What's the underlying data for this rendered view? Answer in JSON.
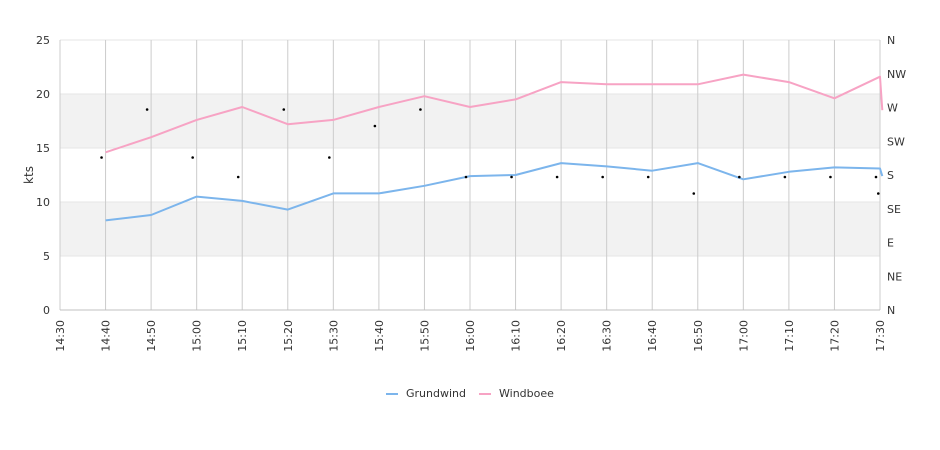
{
  "chart_data": {
    "type": "line",
    "ylabel": "kts",
    "ylim": [
      0,
      25
    ],
    "yticks": [
      "0",
      "5",
      "10",
      "15",
      "20",
      "25"
    ],
    "y2ticks": [
      "N",
      "NE",
      "E",
      "SE",
      "S",
      "SW",
      "W",
      "NW",
      "N"
    ],
    "y2lim": [
      0,
      360
    ],
    "categories": [
      "14:30",
      "14:40",
      "14:50",
      "15:00",
      "15:10",
      "15:20",
      "15:30",
      "15:40",
      "15:50",
      "16:00",
      "16:10",
      "16:20",
      "16:30",
      "16:40",
      "16:50",
      "17:00",
      "17:10",
      "17:20",
      "17:30"
    ],
    "series": [
      {
        "name": "Grundwind",
        "color": "#7cb5ec",
        "points": [
          [
            1,
            8.3
          ],
          [
            2,
            8.8
          ],
          [
            3,
            10.5
          ],
          [
            4,
            10.1
          ],
          [
            5,
            9.3
          ],
          [
            6,
            10.8
          ],
          [
            7,
            10.8
          ],
          [
            8,
            11.5
          ],
          [
            9,
            12.4
          ],
          [
            10,
            12.5
          ],
          [
            11,
            13.6
          ],
          [
            12,
            13.3
          ],
          [
            13,
            12.9
          ],
          [
            14,
            13.6
          ],
          [
            15,
            12.1
          ],
          [
            16,
            12.8
          ],
          [
            17,
            13.2
          ],
          [
            18,
            13.1
          ],
          [
            18.05,
            12.4
          ]
        ]
      },
      {
        "name": "Windboee",
        "color": "#f7a3c4",
        "points": [
          [
            1,
            14.6
          ],
          [
            2,
            16.0
          ],
          [
            3,
            17.6
          ],
          [
            4,
            18.8
          ],
          [
            5,
            17.2
          ],
          [
            6,
            17.6
          ],
          [
            7,
            18.8
          ],
          [
            8,
            19.8
          ],
          [
            9,
            18.8
          ],
          [
            10,
            19.5
          ],
          [
            11,
            21.1
          ],
          [
            12,
            20.9
          ],
          [
            13,
            20.9
          ],
          [
            14,
            20.9
          ],
          [
            15,
            21.8
          ],
          [
            16,
            21.1
          ],
          [
            17,
            19.6
          ],
          [
            18,
            21.6
          ],
          [
            18.05,
            18.5
          ]
        ]
      }
    ],
    "direction": {
      "color": "#000000",
      "points": [
        [
          1,
          206
        ],
        [
          2,
          270
        ],
        [
          3,
          206
        ],
        [
          4,
          180
        ],
        [
          5,
          270
        ],
        [
          6,
          206
        ],
        [
          7,
          248
        ],
        [
          8,
          270
        ],
        [
          9,
          180
        ],
        [
          10,
          180
        ],
        [
          11,
          180
        ],
        [
          12,
          180
        ],
        [
          13,
          180
        ],
        [
          14,
          158
        ],
        [
          15,
          180
        ],
        [
          16,
          180
        ],
        [
          17,
          180
        ],
        [
          18,
          180
        ],
        [
          18.05,
          158
        ]
      ]
    },
    "bands_color": "#f2f2f2",
    "grid": true,
    "legend": "bottom-center"
  }
}
